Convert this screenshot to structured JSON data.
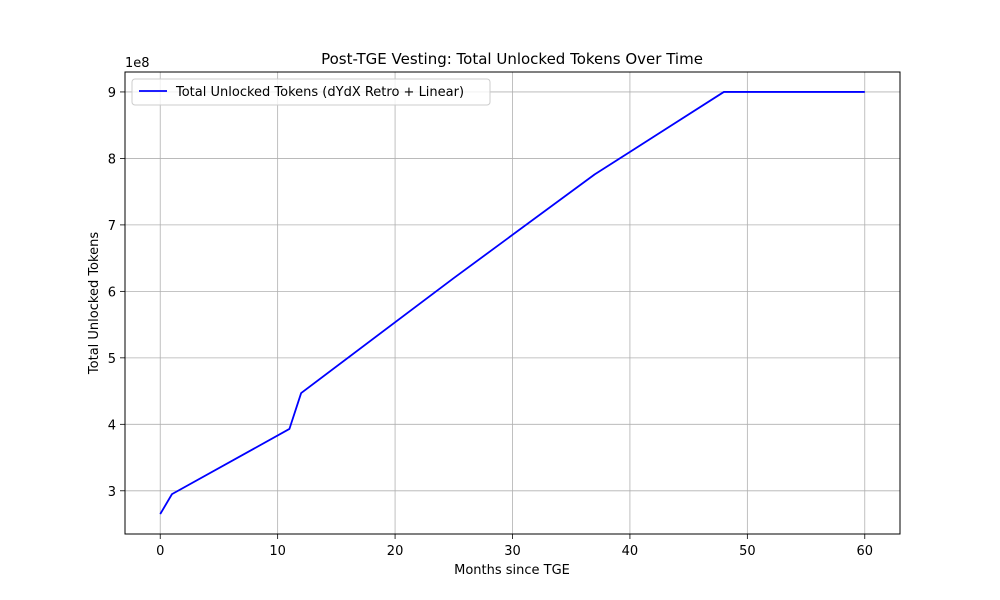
{
  "chart_data": {
    "type": "line",
    "title": "Post-TGE Vesting: Total Unlocked Tokens Over Time",
    "xlabel": "Months since TGE",
    "ylabel": "Total Unlocked Tokens",
    "y_offset_label": "1e8",
    "y_scale_factor": 100000000,
    "xlim": [
      -3,
      63
    ],
    "ylim": [
      235000000,
      930000000
    ],
    "xticks": [
      0,
      10,
      20,
      30,
      40,
      50,
      60
    ],
    "xtick_labels": [
      "0",
      "10",
      "20",
      "30",
      "40",
      "50",
      "60"
    ],
    "yticks": [
      300000000,
      400000000,
      500000000,
      600000000,
      700000000,
      800000000,
      900000000
    ],
    "ytick_labels": [
      "3",
      "4",
      "5",
      "6",
      "7",
      "8",
      "9"
    ],
    "grid": true,
    "legend_position": "top-left",
    "series": [
      {
        "name": "Total Unlocked Tokens (dYdX Retro + Linear)",
        "color": "#0000ff",
        "x": [
          0,
          1,
          11,
          12,
          25,
          37,
          48,
          60
        ],
        "y": [
          265000000,
          295000000,
          393000000,
          447000000,
          620000000,
          776000000,
          900000000,
          900000000
        ]
      }
    ]
  }
}
